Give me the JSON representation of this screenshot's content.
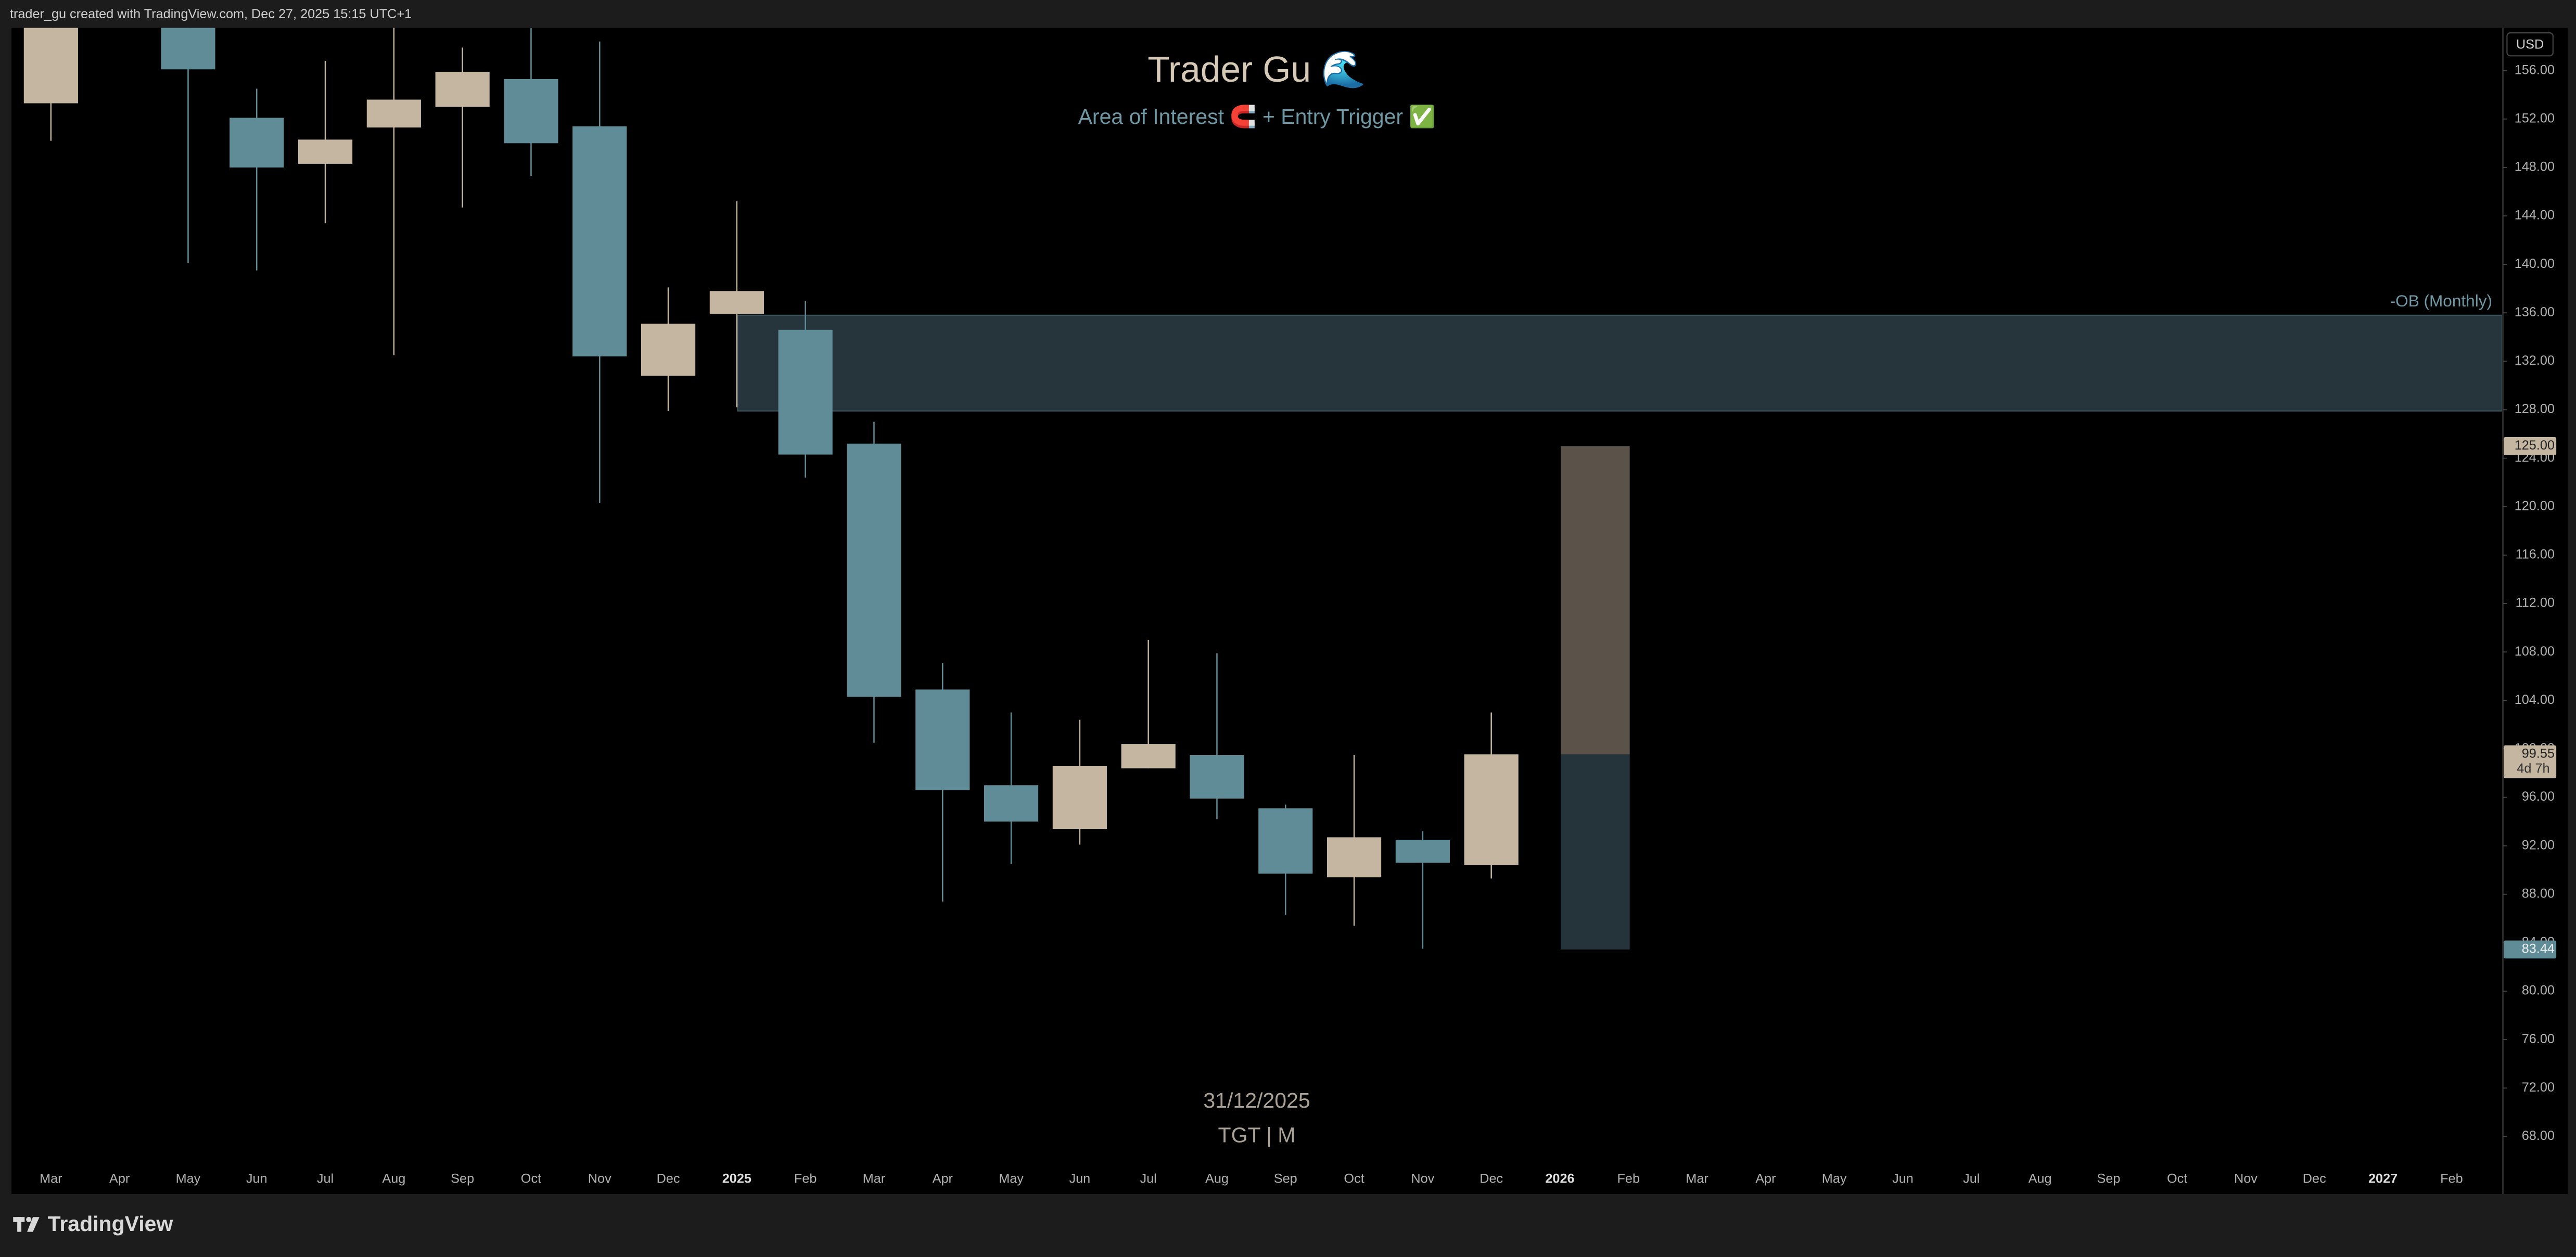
{
  "header": {
    "attribution": "trader_gu created with TradingView.com, Dec 27, 2025 15:15 UTC+1"
  },
  "footer": {
    "brand": "TradingView"
  },
  "chart_data": {
    "type": "candlestick",
    "title": "Trader Gu 🌊",
    "subtitle": "Area of Interest 🧲 + Entry Trigger ✅",
    "currency": "USD",
    "date_label": "31/12/2025",
    "symbol": "TGT | M",
    "categories": [
      "Mar",
      "Apr",
      "May",
      "Jun",
      "Jul",
      "Aug",
      "Sep",
      "Oct",
      "Nov",
      "Dec",
      "2025",
      "Feb",
      "Mar",
      "Apr",
      "May",
      "Jun",
      "Jul",
      "Aug",
      "Sep",
      "Oct",
      "Nov",
      "Dec",
      "2026",
      "Feb",
      "Mar",
      "Apr",
      "May",
      "Jun",
      "Jul",
      "Aug",
      "Sep",
      "Oct",
      "Nov",
      "Dec",
      "2027",
      "Feb"
    ],
    "open": [
      153.3,
      null,
      160.0,
      152.1,
      148.3,
      151.3,
      153.0,
      155.3,
      151.4,
      130.8,
      135.9,
      134.6,
      125.2,
      104.9,
      97.0,
      93.4,
      98.4,
      99.5,
      95.1,
      89.4,
      92.5,
      90.4,
      null,
      null,
      null,
      null,
      null,
      null,
      null,
      null,
      null,
      null,
      null,
      null,
      null,
      null
    ],
    "high": [
      162.0,
      null,
      162.0,
      154.5,
      156.8,
      159.8,
      157.9,
      159.5,
      158.4,
      138.1,
      145.2,
      137.0,
      127.0,
      107.1,
      103.0,
      102.4,
      109.0,
      107.9,
      95.4,
      99.5,
      93.2,
      103.0,
      null,
      null,
      null,
      null,
      null,
      null,
      null,
      null,
      null,
      null,
      null,
      null,
      null,
      null
    ],
    "low": [
      150.2,
      null,
      140.1,
      139.5,
      143.4,
      132.5,
      144.7,
      147.3,
      120.3,
      127.9,
      128.2,
      122.4,
      100.5,
      87.4,
      90.5,
      92.1,
      98.4,
      94.2,
      86.3,
      85.4,
      83.5,
      89.3,
      null,
      null,
      null,
      null,
      null,
      null,
      null,
      null,
      null,
      null,
      null,
      null,
      null,
      null
    ],
    "close": [
      160.5,
      null,
      156.1,
      148.0,
      150.3,
      153.6,
      155.9,
      150.0,
      132.4,
      135.1,
      137.8,
      124.3,
      104.3,
      96.6,
      94.0,
      98.6,
      100.4,
      95.9,
      89.7,
      92.7,
      90.6,
      99.55,
      null,
      null,
      null,
      null,
      null,
      null,
      null,
      null,
      null,
      null,
      null,
      null,
      null,
      null
    ],
    "up_color": "#c4b6a1",
    "down_color": "#5f8c97",
    "ylim": [
      63.25,
      159.52
    ],
    "yticks": [
      {
        "value": 68,
        "label": "68.00"
      },
      {
        "value": 72,
        "label": "72.00"
      },
      {
        "value": 76,
        "label": "76.00"
      },
      {
        "value": 80,
        "label": "80.00"
      },
      {
        "value": 84,
        "label": "84.00"
      },
      {
        "value": 88,
        "label": "88.00"
      },
      {
        "value": 92,
        "label": "92.00"
      },
      {
        "value": 96,
        "label": "96.00"
      },
      {
        "value": 100,
        "label": "100.00"
      },
      {
        "value": 104,
        "label": "104.00"
      },
      {
        "value": 108,
        "label": "108.00"
      },
      {
        "value": 112,
        "label": "112.00"
      },
      {
        "value": 116,
        "label": "116.00"
      },
      {
        "value": 120,
        "label": "120.00"
      },
      {
        "value": 124,
        "label": "124.00"
      },
      {
        "value": 128,
        "label": "128.00"
      },
      {
        "value": 132,
        "label": "132.00"
      },
      {
        "value": 136,
        "label": "136.00"
      },
      {
        "value": 140,
        "label": "140.00"
      },
      {
        "value": 144,
        "label": "144.00"
      },
      {
        "value": 148,
        "label": "148.00"
      },
      {
        "value": 152,
        "label": "152.00"
      },
      {
        "value": 156,
        "label": "156.00"
      }
    ],
    "zone": {
      "label": "-OB (Monthly)",
      "values": [
        135.8,
        127.9
      ],
      "color": "#25353b"
    },
    "position": {
      "values": [
        125,
        99.55,
        83.44
      ],
      "value_labels": [
        "125.00",
        "99.55",
        "83.44"
      ],
      "countdown": "4d 7h",
      "colors": [
        "#5b534a",
        "#24343a"
      ]
    }
  }
}
